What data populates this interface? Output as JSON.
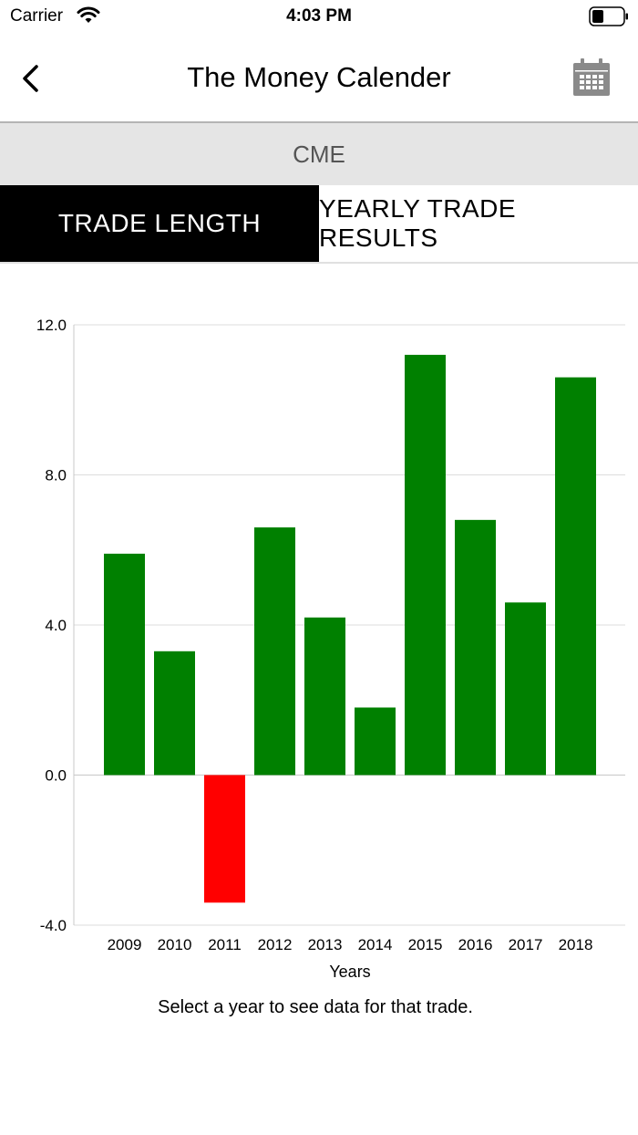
{
  "status_bar": {
    "carrier": "Carrier",
    "time": "4:03 PM"
  },
  "nav": {
    "title": "The Money Calender",
    "back_icon": "chevron-left-icon",
    "calendar_icon": "calendar-icon"
  },
  "segment": {
    "title": "CME"
  },
  "tabs": [
    {
      "label": "TRADE LENGTH",
      "active": true
    },
    {
      "label": "YEARLY TRADE RESULTS",
      "active": false
    }
  ],
  "colors": {
    "positive": "#008000",
    "negative": "#ff0000",
    "active_tab": "#000000",
    "header_bg": "#e5e5e5"
  },
  "chart_data": {
    "type": "bar",
    "categories": [
      "2009",
      "2010",
      "2011",
      "2012",
      "2013",
      "2014",
      "2015",
      "2016",
      "2017",
      "2018"
    ],
    "values": [
      5.9,
      3.3,
      -3.4,
      6.6,
      4.2,
      1.8,
      11.2,
      6.8,
      4.6,
      10.6
    ],
    "xlabel": "Years",
    "ylabel": "",
    "ylim": [
      -4,
      12
    ],
    "yticks": [
      -4,
      0,
      4,
      8,
      12
    ],
    "ytick_labels": [
      "-4.0",
      "0.0",
      "4.0",
      "8.0",
      "12.0"
    ],
    "grid": true
  },
  "hint": "Select a year to see data for that trade."
}
